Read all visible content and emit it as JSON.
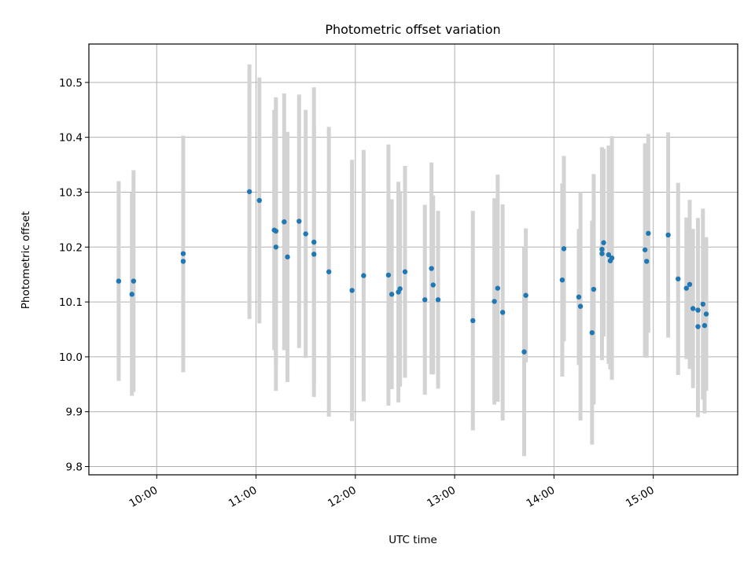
{
  "chart_data": {
    "type": "scatter",
    "title": "Photometric offset variation",
    "xlabel": "UTC time",
    "ylabel": "Photometric offset",
    "x_ticks": [
      "10:00",
      "11:00",
      "12:00",
      "13:00",
      "14:00",
      "15:00"
    ],
    "x_tick_minutes": [
      600,
      660,
      720,
      780,
      840,
      900
    ],
    "xlim": [
      "09:19",
      "15:51"
    ],
    "y_ticks": [
      "9.8",
      "9.9",
      "10.0",
      "10.1",
      "10.2",
      "10.3",
      "10.4",
      "10.5"
    ],
    "ylim": [
      9.785,
      10.57
    ],
    "grid": true,
    "colors": {
      "point": "#1f77b4",
      "errorbar": "#d3d3d3",
      "grid": "#b0b0b0"
    },
    "series": [
      {
        "x": [
          "09:37",
          "09:45",
          "09:46",
          "10:16",
          "10:16",
          "10:56",
          "11:02",
          "11:11",
          "11:12",
          "11:12",
          "11:17",
          "11:19",
          "11:26",
          "11:30",
          "11:35",
          "11:35",
          "11:44",
          "11:58",
          "12:05",
          "12:20",
          "12:22",
          "12:26",
          "12:27",
          "12:30",
          "12:42",
          "12:46",
          "12:47",
          "12:50",
          "13:11",
          "13:24",
          "13:26",
          "13:29",
          "13:42",
          "13:43",
          "14:05",
          "14:06",
          "14:15",
          "14:16",
          "14:23",
          "14:24",
          "14:29",
          "14:29",
          "14:30",
          "14:33",
          "14:34",
          "14:35",
          "14:55",
          "14:56",
          "14:57",
          "15:09",
          "15:15",
          "15:20",
          "15:22",
          "15:24",
          "15:27",
          "15:27",
          "15:30",
          "15:31",
          "15:32"
        ],
        "y": [
          10.138,
          10.114,
          10.138,
          10.188,
          10.174,
          10.301,
          10.285,
          10.231,
          10.229,
          10.2,
          10.246,
          10.182,
          10.247,
          10.224,
          10.209,
          10.187,
          10.155,
          10.121,
          10.148,
          10.149,
          10.114,
          10.118,
          10.124,
          10.155,
          10.104,
          10.161,
          10.131,
          10.104,
          10.066,
          10.101,
          10.125,
          10.081,
          10.009,
          10.112,
          10.14,
          10.197,
          10.109,
          10.092,
          10.044,
          10.123,
          10.188,
          10.196,
          10.208,
          10.186,
          10.175,
          10.18,
          10.195,
          10.174,
          10.225,
          10.222,
          10.142,
          10.125,
          10.132,
          10.088,
          10.085,
          10.055,
          10.096,
          10.057,
          10.078
        ],
        "error": [
          0.182,
          0.185,
          0.202,
          0.215,
          0.202,
          0.232,
          0.224,
          0.219,
          0.244,
          0.262,
          0.234,
          0.228,
          0.231,
          0.226,
          0.282,
          0.234,
          0.264,
          0.238,
          0.229,
          0.238,
          0.173,
          0.201,
          0.178,
          0.193,
          0.173,
          0.193,
          0.163,
          0.162,
          0.2,
          0.188,
          0.207,
          0.197,
          0.19,
          0.122,
          0.176,
          0.169,
          0.124,
          0.208,
          0.204,
          0.21,
          0.194,
          0.182,
          0.171,
          0.199,
          0.198,
          0.222,
          0.194,
          0.176,
          0.181,
          0.187,
          0.175,
          0.129,
          0.154,
          0.145,
          0.168,
          0.165,
          0.174,
          0.16,
          0.14
        ]
      }
    ]
  }
}
